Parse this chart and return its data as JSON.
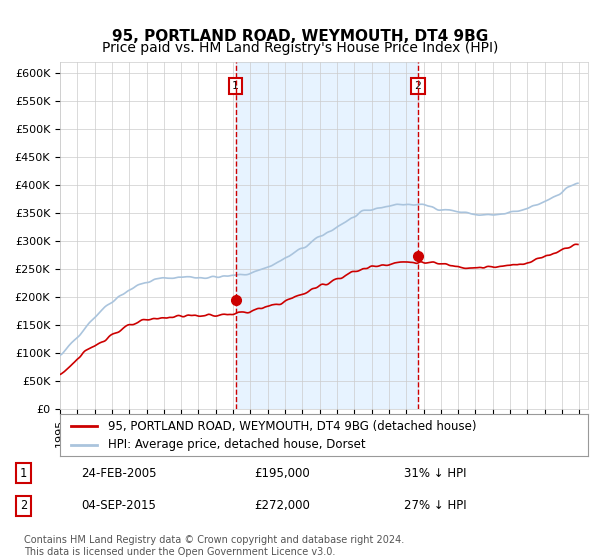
{
  "title": "95, PORTLAND ROAD, WEYMOUTH, DT4 9BG",
  "subtitle": "Price paid vs. HM Land Registry's House Price Index (HPI)",
  "xlabel": "",
  "ylabel": "",
  "ylim": [
    0,
    620000
  ],
  "yticks": [
    0,
    50000,
    100000,
    150000,
    200000,
    250000,
    300000,
    350000,
    400000,
    450000,
    500000,
    550000,
    600000
  ],
  "ytick_labels": [
    "£0",
    "£50K",
    "£100K",
    "£150K",
    "£200K",
    "£250K",
    "£300K",
    "£350K",
    "£400K",
    "£450K",
    "£500K",
    "£550K",
    "£600K"
  ],
  "hpi_color": "#aac4dd",
  "price_color": "#cc0000",
  "marker_color": "#cc0000",
  "dashed_color": "#cc0000",
  "shading_color": "#ddeeff",
  "sale1_date": 2005.14,
  "sale1_price": 195000,
  "sale2_date": 2015.67,
  "sale2_price": 272000,
  "legend_entries": [
    "95, PORTLAND ROAD, WEYMOUTH, DT4 9BG (detached house)",
    "HPI: Average price, detached house, Dorset"
  ],
  "table_rows": [
    [
      "1",
      "24-FEB-2005",
      "£195,000",
      "31% ↓ HPI"
    ],
    [
      "2",
      "04-SEP-2015",
      "£272,000",
      "27% ↓ HPI"
    ]
  ],
  "footnote": "Contains HM Land Registry data © Crown copyright and database right 2024.\nThis data is licensed under the Open Government Licence v3.0.",
  "background_color": "#ffffff",
  "grid_color": "#cccccc",
  "title_fontsize": 11,
  "subtitle_fontsize": 10,
  "tick_fontsize": 8,
  "legend_fontsize": 8.5,
  "table_fontsize": 8.5,
  "footnote_fontsize": 7
}
